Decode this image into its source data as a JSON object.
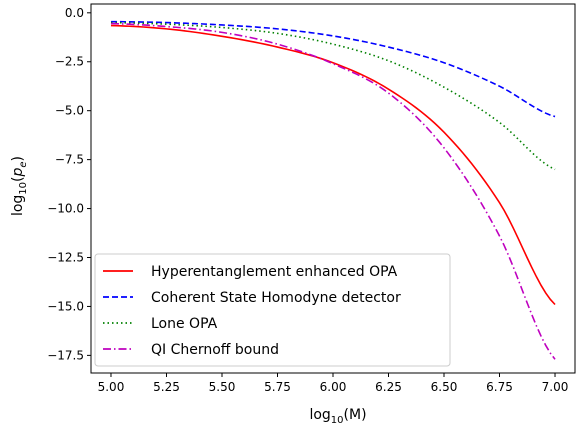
{
  "chart_data": {
    "type": "line",
    "title": "",
    "xlabel": "log10(M)",
    "ylabel": "log10(pe)",
    "xlim": [
      4.91,
      7.09
    ],
    "ylim": [
      -18.4,
      0.45
    ],
    "x": [
      5.0,
      5.25,
      5.5,
      5.75,
      6.0,
      6.25,
      6.5,
      6.75,
      7.0
    ],
    "xticks": [
      "5.00",
      "5.25",
      "5.50",
      "5.75",
      "6.00",
      "6.25",
      "6.50",
      "6.75",
      "7.00"
    ],
    "yticks": [
      "0.0",
      "−2.5",
      "−5.0",
      "−7.5",
      "−10.0",
      "−12.5",
      "−15.0",
      "−17.5"
    ],
    "ytick_values": [
      0,
      -2.5,
      -5.0,
      -7.5,
      -10.0,
      -12.5,
      -15.0,
      -17.5
    ],
    "grid": false,
    "legend_position": "lower-left",
    "series": [
      {
        "name": "Hyperentanglement enhanced OPA",
        "color": "#ff0000",
        "dash": "solid",
        "values": [
          -0.65,
          -0.82,
          -1.2,
          -1.75,
          -2.55,
          -3.9,
          -6.1,
          -9.7,
          -14.9
        ]
      },
      {
        "name": "Coherent State Homodyne detector",
        "color": "#0000ff",
        "dash": "dashed",
        "values": [
          -0.45,
          -0.5,
          -0.62,
          -0.82,
          -1.18,
          -1.75,
          -2.55,
          -3.75,
          -5.3
        ]
      },
      {
        "name": "Lone OPA",
        "color": "#008000",
        "dash": "dotted",
        "values": [
          -0.5,
          -0.58,
          -0.75,
          -1.05,
          -1.6,
          -2.45,
          -3.8,
          -5.6,
          -8.0
        ]
      },
      {
        "name": "QI Chernoff bound",
        "color": "#bf00bf",
        "dash": "dashdot",
        "values": [
          -0.55,
          -0.7,
          -1.0,
          -1.6,
          -2.6,
          -4.1,
          -6.9,
          -11.4,
          -17.7
        ]
      }
    ]
  }
}
